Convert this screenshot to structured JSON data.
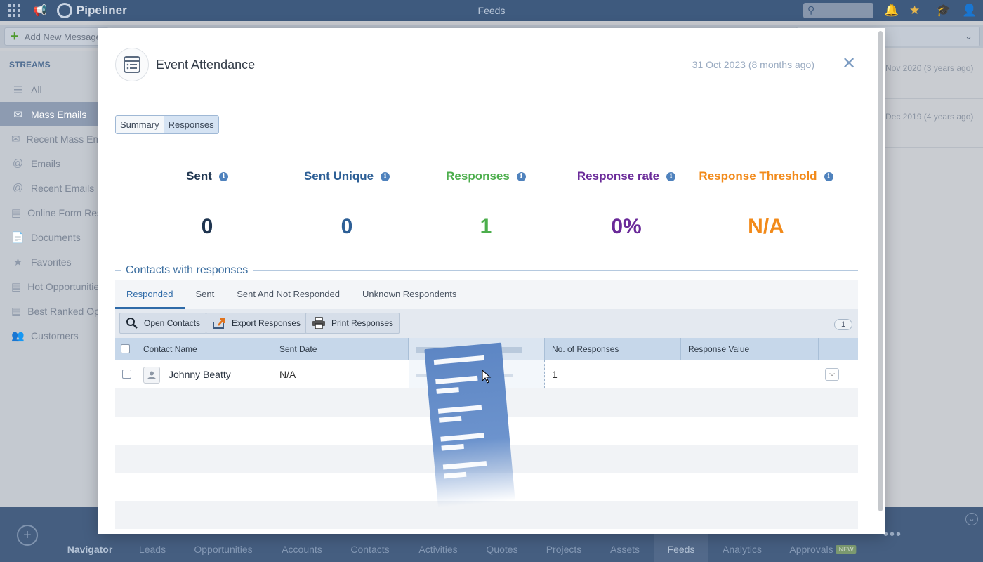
{
  "app": {
    "brand": "Pipeliner",
    "page_title": "Feeds",
    "add_new_message": "Add New Message"
  },
  "sidebar": {
    "header": "STREAMS",
    "items": [
      {
        "label": "All",
        "icon": "list-icon"
      },
      {
        "label": "Mass Emails",
        "icon": "mass-email-icon",
        "active": true
      },
      {
        "label": "Recent Mass Emails",
        "icon": "recent-mass-email-icon"
      },
      {
        "label": "Emails",
        "icon": "at-icon"
      },
      {
        "label": "Recent Emails",
        "icon": "recent-email-icon"
      },
      {
        "label": "Online Form Responses",
        "icon": "form-icon"
      },
      {
        "label": "Documents",
        "icon": "document-icon"
      },
      {
        "label": "Favorites",
        "icon": "star-icon"
      },
      {
        "label": "Hot Opportunities",
        "icon": "hot-icon"
      },
      {
        "label": "Best Ranked Opportunities",
        "icon": "ranked-icon"
      },
      {
        "label": "Customers",
        "icon": "customers-icon"
      }
    ]
  },
  "feed": {
    "rows": [
      "Nov 2020 (3 years ago)",
      "Dec 2019 (4 years ago)"
    ]
  },
  "bottom_nav": {
    "items": [
      "Navigator",
      "Leads",
      "Opportunities",
      "Accounts",
      "Contacts",
      "Activities",
      "Quotes",
      "Projects",
      "Assets",
      "Feeds",
      "Analytics",
      "Approvals"
    ],
    "new_badge": "NEW"
  },
  "modal": {
    "title": "Event Attendance",
    "date": "31 Oct 2023 (8 months ago)",
    "segments": [
      "Summary",
      "Responses"
    ],
    "active_segment": "Responses",
    "stats": [
      {
        "label": "Sent",
        "value": "0",
        "color": "#1f3550"
      },
      {
        "label": "Sent Unique",
        "value": "0",
        "color": "#2d5f96"
      },
      {
        "label": "Responses",
        "value": "1",
        "color": "#4cae4c"
      },
      {
        "label": "Response rate",
        "value": "0%",
        "color": "#6a2a99"
      },
      {
        "label": "Response Threshold",
        "value": "N/A",
        "color": "#f28a1a"
      }
    ],
    "section_title": "Contacts with responses",
    "tabs": [
      "Responded",
      "Sent",
      "Sent And Not Responded",
      "Unknown Respondents"
    ],
    "active_tab": "Responded",
    "toolbar": {
      "open_contacts": "Open Contacts",
      "export_responses": "Export Responses",
      "print_responses": "Print Responses",
      "count": "1"
    },
    "table": {
      "columns": [
        "Contact Name",
        "Sent Date",
        "",
        "No. of Responses",
        "Response Value"
      ],
      "rows": [
        {
          "contact_name": "Johnny Beatty",
          "sent_date": "N/A",
          "no_of_responses": "1",
          "response_value": ""
        }
      ]
    }
  }
}
